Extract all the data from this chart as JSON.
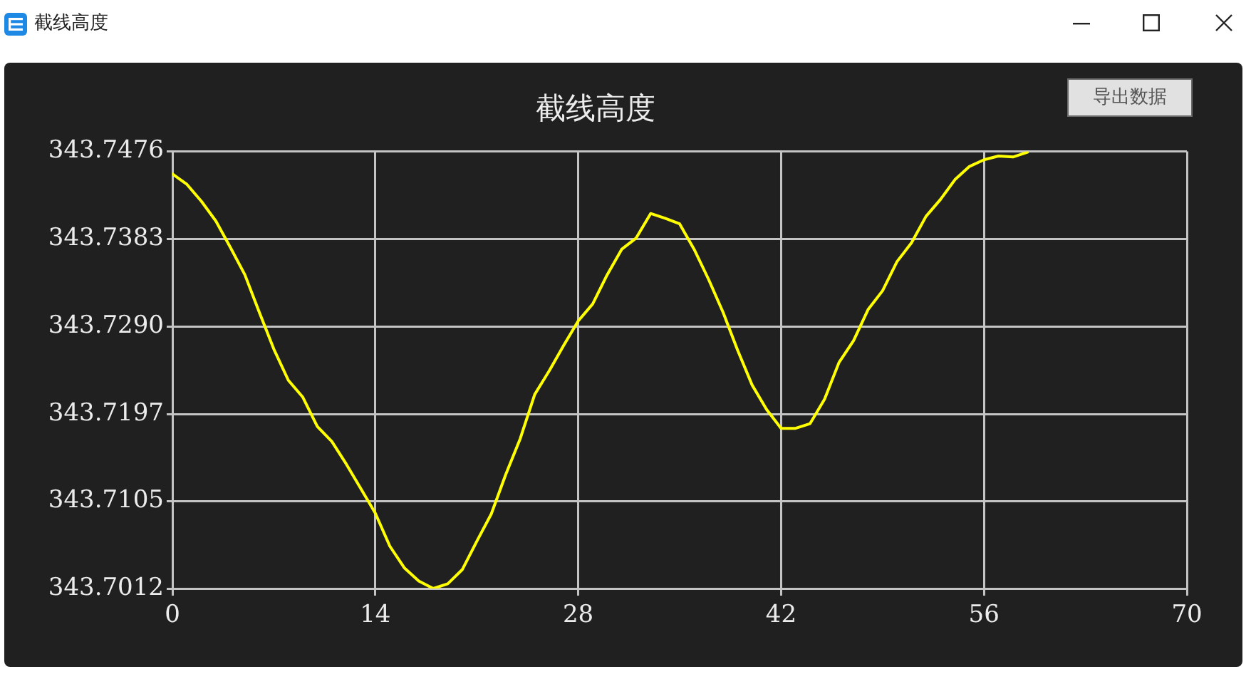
{
  "chart_data": {
    "type": "line",
    "title": "截线高度",
    "annotations": [
      "导出数据"
    ],
    "x": [
      0,
      1,
      2,
      3,
      4,
      5,
      6,
      7,
      8,
      9,
      10,
      11,
      12,
      13,
      14,
      15,
      16,
      17,
      18,
      19,
      20,
      21,
      22,
      23,
      24,
      25,
      26,
      27,
      28,
      29,
      30,
      31,
      32,
      33,
      34,
      35,
      36,
      37,
      38,
      39,
      40,
      41,
      42,
      43,
      44,
      45,
      46,
      47,
      48,
      49,
      50,
      51,
      52,
      53,
      54,
      55,
      56,
      57,
      58,
      59
    ],
    "series": [
      {
        "color": "#ffff00",
        "values": [
          343.7452,
          343.7441,
          343.7423,
          343.7402,
          343.7374,
          343.7345,
          343.7305,
          343.7266,
          343.7233,
          343.7215,
          343.7184,
          343.7168,
          343.7144,
          343.7118,
          343.7092,
          343.7057,
          343.7034,
          343.702,
          343.7012,
          343.7017,
          343.7032,
          343.7062,
          343.7091,
          343.7133,
          343.7171,
          343.7218,
          343.7243,
          343.727,
          343.7296,
          343.7314,
          343.7345,
          343.7372,
          343.7384,
          343.741,
          343.7405,
          343.7399,
          343.7372,
          343.734,
          343.7305,
          343.7265,
          343.7228,
          343.7202,
          343.7182,
          343.7182,
          343.7187,
          343.7213,
          343.7252,
          343.7275,
          343.7308,
          343.7328,
          343.7359,
          343.7379,
          343.7407,
          343.7425,
          343.7446,
          343.746,
          343.7467,
          343.7471,
          343.747,
          343.7475
        ]
      }
    ],
    "xlim": [
      0,
      70
    ],
    "xticks": [
      0,
      14,
      28,
      42,
      56,
      70
    ],
    "ylim": [
      343.7012,
      343.7476
    ],
    "yticks": [
      343.7012,
      343.7105,
      343.7197,
      {
        "value": 343.729,
        "label": "343.7290"
      },
      343.7383,
      343.7476
    ],
    "grid": true
  }
}
